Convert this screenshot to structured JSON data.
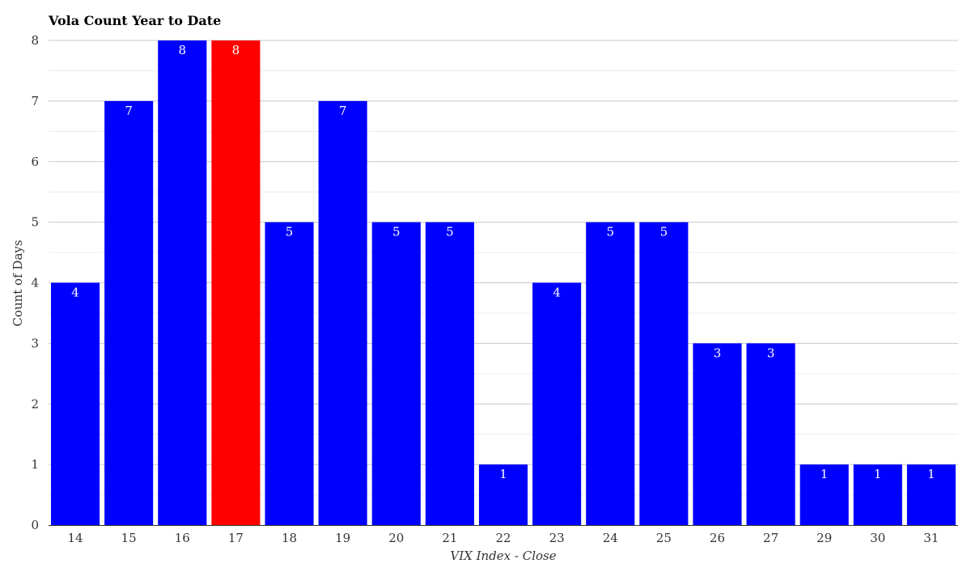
{
  "chart_data": {
    "type": "bar",
    "title": "Vola Count Year to Date",
    "xlabel": "VIX Index - Close",
    "ylabel": "Count of Days",
    "categories": [
      "14",
      "15",
      "16",
      "17",
      "18",
      "19",
      "20",
      "21",
      "22",
      "23",
      "24",
      "25",
      "26",
      "27",
      "29",
      "30",
      "31"
    ],
    "values": [
      4,
      7,
      8,
      8,
      5,
      7,
      5,
      5,
      1,
      4,
      5,
      5,
      3,
      3,
      1,
      1,
      1
    ],
    "highlight_category": "17",
    "ylim": [
      0,
      8
    ],
    "yticks": [
      0,
      1,
      2,
      3,
      4,
      5,
      6,
      7,
      8
    ],
    "grid": true,
    "colors": {
      "bar": "#0000ff",
      "highlight": "#ff0000",
      "gridline": "#c8c8c8",
      "minor_gridline": "#ececec",
      "axis": "#333333"
    }
  }
}
